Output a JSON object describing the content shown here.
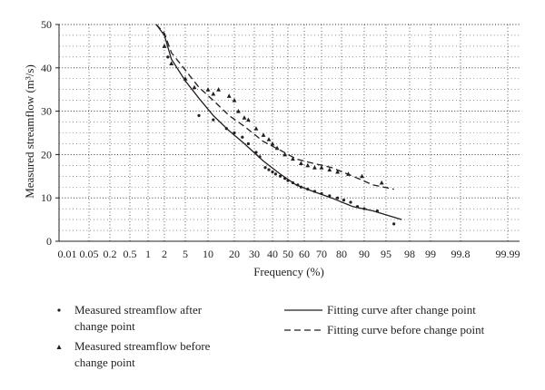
{
  "chart_data": {
    "type": "scatter",
    "xlabel": "Frequency (%)",
    "ylabel": "Measured streamflow (m³/s)",
    "x_scale": "normal-probability",
    "ylim": [
      0,
      50
    ],
    "y_ticks": [
      0,
      10,
      20,
      30,
      40,
      50
    ],
    "x_ticks": [
      {
        "value": 0.01,
        "label": "0.01"
      },
      {
        "value": 0.05,
        "label": "0.05"
      },
      {
        "value": 0.2,
        "label": "0.2"
      },
      {
        "value": 0.5,
        "label": "0.5"
      },
      {
        "value": 1,
        "label": "1"
      },
      {
        "value": 2,
        "label": "2"
      },
      {
        "value": 5,
        "label": "5"
      },
      {
        "value": 10,
        "label": "10"
      },
      {
        "value": 20,
        "label": "20"
      },
      {
        "value": 30,
        "label": "30"
      },
      {
        "value": 40,
        "label": "40"
      },
      {
        "value": 50,
        "label": "50"
      },
      {
        "value": 60,
        "label": "60"
      },
      {
        "value": 70,
        "label": "70"
      },
      {
        "value": 80,
        "label": "80"
      },
      {
        "value": 90,
        "label": "90"
      },
      {
        "value": 95,
        "label": "95"
      },
      {
        "value": 98,
        "label": "98"
      },
      {
        "value": 99,
        "label": "99"
      },
      {
        "value": 99.8,
        "label": "99.8"
      },
      {
        "value": 99.99,
        "label": "99.99"
      }
    ],
    "grid": true,
    "grid_style": "dotted",
    "legend_position": "bottom",
    "series": [
      {
        "name": "Measured streamflow after change point",
        "kind": "points",
        "marker": "dot",
        "x": [
          2.5,
          8,
          12,
          17,
          20,
          24,
          27,
          31,
          33,
          36,
          38,
          40,
          42,
          45,
          48,
          50,
          53,
          56,
          58,
          62,
          66,
          70,
          74,
          78,
          81,
          84,
          87,
          90,
          93,
          96
        ],
        "y": [
          42.5,
          29,
          28,
          26,
          25,
          24,
          22.5,
          20.5,
          19.5,
          17,
          16.5,
          16,
          15.5,
          15,
          14.5,
          14,
          13.5,
          13,
          12.5,
          12,
          11.5,
          11,
          10.5,
          10,
          9.5,
          9,
          8,
          7.5,
          7,
          4
        ]
      },
      {
        "name": "Measured streamflow before change point",
        "kind": "points",
        "marker": "triangle",
        "x": [
          2,
          3,
          5,
          7,
          10,
          12,
          14,
          18,
          20,
          22,
          25,
          27,
          31,
          35,
          38,
          40,
          43,
          48,
          53,
          58,
          62,
          66,
          70,
          74,
          78,
          83,
          89,
          94
        ],
        "y": [
          45,
          41,
          37.5,
          35.5,
          35,
          34,
          35,
          33.5,
          32.5,
          30,
          28.5,
          28,
          26,
          24.5,
          23.5,
          22.5,
          21.5,
          20,
          19,
          18,
          17.5,
          17,
          17,
          16.5,
          16,
          15.5,
          15,
          13.5
        ]
      },
      {
        "name": "Fitting curve after change point",
        "kind": "line",
        "dash": "solid",
        "x": [
          1.5,
          2,
          3,
          5,
          8,
          12,
          18,
          25,
          35,
          45,
          55,
          65,
          75,
          85,
          92,
          97
        ],
        "y": [
          50,
          47.5,
          42,
          37,
          33,
          29,
          25.5,
          22.5,
          18.5,
          15.5,
          13,
          11.5,
          10,
          8,
          7,
          5
        ]
      },
      {
        "name": "Fitting curve before change point",
        "kind": "line",
        "dash": "dashed",
        "x": [
          1.5,
          2,
          3,
          5,
          8,
          12,
          18,
          25,
          35,
          45,
          55,
          65,
          75,
          85,
          92,
          96
        ],
        "y": [
          50,
          48,
          43.5,
          39.5,
          35.5,
          32.5,
          29,
          26.5,
          23,
          21,
          19,
          18,
          17,
          15,
          13,
          12
        ]
      }
    ]
  },
  "legend": {
    "items": [
      {
        "line1": "Measured streamflow after",
        "line2": "change point"
      },
      {
        "line1": "Measured streamflow before",
        "line2": "change point"
      },
      {
        "line1": "Fitting curve after change point",
        "line2": ""
      },
      {
        "line1": "Fitting curve before change point",
        "line2": ""
      }
    ]
  },
  "colors": {
    "ink": "#231f20",
    "grid": "#231f20",
    "background": "#ffffff"
  }
}
